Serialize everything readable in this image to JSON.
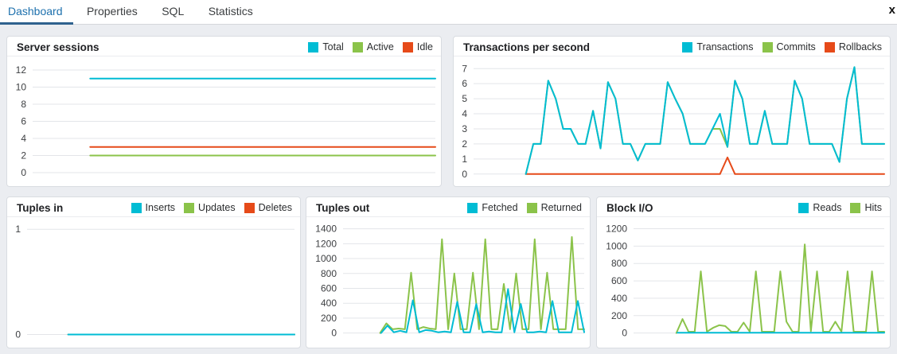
{
  "tab_bar": {
    "tabs": [
      {
        "label": "Dashboard",
        "active": true
      },
      {
        "label": "Properties",
        "active": false
      },
      {
        "label": "SQL",
        "active": false
      },
      {
        "label": "Statistics",
        "active": false
      }
    ],
    "close_glyph": "x"
  },
  "colors": {
    "series_cyan": "#00BCD4",
    "series_green": "#8BC34A",
    "series_orange": "#E64A19",
    "active_tab_text": "#1d70ad",
    "active_tab_underline": "#2f628e",
    "gridline": "#e3e5e9",
    "tick_text": "#3d3f42"
  },
  "panels": [
    {
      "title": "Server sessions",
      "legend": [
        {
          "label": "Total",
          "color": "#00BCD4"
        },
        {
          "label": "Active",
          "color": "#8BC34A"
        },
        {
          "label": "Idle",
          "color": "#E64A19"
        }
      ],
      "chart_data": {
        "type": "line",
        "ylim": [
          -1.4,
          13.4
        ],
        "yticks": [
          0,
          2,
          4,
          6,
          8,
          10,
          12
        ],
        "series": [
          {
            "name": "Idle",
            "color": "#E64A19",
            "values": [
              null,
              null,
              null,
              null,
              null,
              null,
              null,
              3,
              3,
              3,
              3,
              3,
              3,
              3,
              3,
              3,
              3,
              3,
              3,
              3,
              3,
              3,
              3,
              3,
              3,
              3,
              3,
              3,
              3,
              3,
              3,
              3,
              3,
              3,
              3,
              3,
              3,
              3,
              3,
              3,
              3,
              3,
              3,
              3,
              3,
              3,
              3,
              3,
              3,
              3
            ]
          },
          {
            "name": "Active",
            "color": "#8BC34A",
            "values": [
              null,
              null,
              null,
              null,
              null,
              null,
              null,
              2,
              2,
              2,
              2,
              2,
              2,
              2,
              2,
              2,
              2,
              2,
              2,
              2,
              2,
              2,
              2,
              2,
              2,
              2,
              2,
              2,
              2,
              2,
              2,
              2,
              2,
              2,
              2,
              2,
              2,
              2,
              2,
              2,
              2,
              2,
              2,
              2,
              2,
              2,
              2,
              2,
              2,
              2
            ]
          },
          {
            "name": "Total",
            "color": "#00BCD4",
            "values": [
              null,
              null,
              null,
              null,
              null,
              null,
              null,
              11,
              11,
              11,
              11,
              11,
              11,
              11,
              11,
              11,
              11,
              11,
              11,
              11,
              11,
              11,
              11,
              11,
              11,
              11,
              11,
              11,
              11,
              11,
              11,
              11,
              11,
              11,
              11,
              11,
              11,
              11,
              11,
              11,
              11,
              11,
              11,
              11,
              11,
              11,
              11,
              11,
              11,
              11
            ]
          }
        ]
      }
    },
    {
      "title": "Transactions per second",
      "legend": [
        {
          "label": "Transactions",
          "color": "#00BCD4"
        },
        {
          "label": "Commits",
          "color": "#8BC34A"
        },
        {
          "label": "Rollbacks",
          "color": "#E64A19"
        }
      ],
      "chart_data": {
        "type": "line",
        "ylim": [
          -0.7,
          7.7
        ],
        "yticks": [
          0,
          1,
          2,
          3,
          4,
          5,
          6,
          7
        ],
        "series": [
          {
            "name": "Commits",
            "color": "#8BC34A",
            "values": [
              null,
              null,
              null,
              null,
              null,
              null,
              null,
              0,
              2,
              2,
              6.2,
              5,
              3,
              3,
              2,
              2,
              4.2,
              1.7,
              6.1,
              5,
              2,
              2,
              0.9,
              2,
              2,
              2,
              6.1,
              5,
              4,
              2,
              2,
              2,
              3,
              3,
              1.8,
              6.2,
              5,
              2,
              2,
              4.2,
              2,
              2,
              2,
              6.2,
              5,
              2,
              2,
              2,
              2,
              0.8,
              5,
              7.1,
              2,
              2,
              2,
              2
            ]
          },
          {
            "name": "Rollbacks",
            "color": "#E64A19",
            "values": [
              null,
              null,
              null,
              null,
              null,
              null,
              null,
              0,
              0,
              0,
              0,
              0,
              0,
              0,
              0,
              0,
              0,
              0,
              0,
              0,
              0,
              0,
              0,
              0,
              0,
              0,
              0,
              0,
              0,
              0,
              0,
              0,
              0,
              0,
              1.1,
              0,
              0,
              0,
              0,
              0,
              0,
              0,
              0,
              0,
              0,
              0,
              0,
              0,
              0,
              0,
              0,
              0,
              0,
              0,
              0,
              0
            ]
          },
          {
            "name": "Transactions",
            "color": "#00BCD4",
            "values": [
              null,
              null,
              null,
              null,
              null,
              null,
              null,
              0,
              2,
              2,
              6.2,
              5,
              3,
              3,
              2,
              2,
              4.2,
              1.7,
              6.1,
              5,
              2,
              2,
              0.9,
              2,
              2,
              2,
              6.1,
              5,
              4,
              2,
              2,
              2,
              3,
              4,
              1.8,
              6.2,
              5,
              2,
              2,
              4.2,
              2,
              2,
              2,
              6.2,
              5,
              2,
              2,
              2,
              2,
              0.8,
              5,
              7.1,
              2,
              2,
              2,
              2
            ]
          }
        ]
      }
    },
    {
      "title": "Tuples in",
      "legend": [
        {
          "label": "Inserts",
          "color": "#00BCD4"
        },
        {
          "label": "Updates",
          "color": "#8BC34A"
        },
        {
          "label": "Deletes",
          "color": "#E64A19"
        }
      ],
      "chart_data": {
        "type": "line",
        "ylim": [
          -0.11,
          1.1
        ],
        "yticks": [
          0,
          1
        ],
        "series": [
          {
            "name": "Deletes",
            "color": "#E64A19",
            "values": [
              null,
              null,
              null,
              null,
              null,
              null,
              0,
              0,
              0,
              0,
              0,
              0,
              0,
              0,
              0,
              0,
              0,
              0,
              0,
              0,
              0,
              0,
              0,
              0,
              0,
              0,
              0,
              0,
              0,
              0,
              0,
              0,
              0,
              0,
              0,
              0,
              0,
              0,
              0,
              0
            ]
          },
          {
            "name": "Updates",
            "color": "#8BC34A",
            "values": [
              null,
              null,
              null,
              null,
              null,
              null,
              0,
              0,
              0,
              0,
              0,
              0,
              0,
              0,
              0,
              0,
              0,
              0,
              0,
              0,
              0,
              0,
              0,
              0,
              0,
              0,
              0,
              0,
              0,
              0,
              0,
              0,
              0,
              0,
              0,
              0,
              0,
              0,
              0,
              0
            ]
          },
          {
            "name": "Inserts",
            "color": "#00BCD4",
            "values": [
              null,
              null,
              null,
              null,
              null,
              null,
              0,
              0,
              0,
              0,
              0,
              0,
              0,
              0,
              0,
              0,
              0,
              0,
              0,
              0,
              0,
              0,
              0,
              0,
              0,
              0,
              0,
              0,
              0,
              0,
              0,
              0,
              0,
              0,
              0,
              0,
              0,
              0,
              0,
              0
            ]
          }
        ]
      }
    },
    {
      "title": "Tuples out",
      "legend": [
        {
          "label": "Fetched",
          "color": "#00BCD4"
        },
        {
          "label": "Returned",
          "color": "#8BC34A"
        }
      ],
      "chart_data": {
        "type": "line",
        "ylim": [
          -175,
          1535
        ],
        "yticks": [
          0,
          200,
          400,
          600,
          800,
          1000,
          1200,
          1400
        ],
        "series": [
          {
            "name": "Returned",
            "color": "#8BC34A",
            "values": [
              null,
              null,
              null,
              null,
              null,
              null,
              0,
              130,
              50,
              60,
              50,
              810,
              50,
              80,
              60,
              50,
              1260,
              50,
              800,
              50,
              50,
              810,
              50,
              1260,
              50,
              50,
              660,
              50,
              800,
              50,
              50,
              1260,
              50,
              810,
              50,
              50,
              50,
              1290,
              50,
              50
            ]
          },
          {
            "name": "Fetched",
            "color": "#00BCD4",
            "values": [
              null,
              null,
              null,
              null,
              null,
              null,
              0,
              100,
              10,
              30,
              10,
              440,
              10,
              40,
              30,
              10,
              20,
              10,
              420,
              10,
              10,
              390,
              10,
              20,
              10,
              10,
              590,
              10,
              390,
              10,
              10,
              20,
              10,
              430,
              10,
              10,
              10,
              430,
              10
            ]
          }
        ]
      }
    },
    {
      "title": "Block I/O",
      "legend": [
        {
          "label": "Reads",
          "color": "#00BCD4"
        },
        {
          "label": "Hits",
          "color": "#8BC34A"
        }
      ],
      "chart_data": {
        "type": "line",
        "ylim": [
          -150,
          1315
        ],
        "yticks": [
          0,
          200,
          400,
          600,
          800,
          1000,
          1200
        ],
        "series": [
          {
            "name": "Hits",
            "color": "#8BC34A",
            "values": [
              null,
              null,
              null,
              null,
              null,
              null,
              null,
              0,
              160,
              15,
              15,
              710,
              15,
              60,
              90,
              80,
              15,
              15,
              120,
              15,
              710,
              15,
              15,
              15,
              710,
              130,
              15,
              15,
              1020,
              20,
              710,
              15,
              15,
              130,
              15,
              710,
              15,
              15,
              15,
              710,
              15,
              15
            ]
          },
          {
            "name": "Reads",
            "color": "#00BCD4",
            "values": [
              null,
              null,
              null,
              null,
              null,
              null,
              null,
              3,
              3,
              3,
              3,
              3,
              3,
              3,
              3,
              3,
              3,
              3,
              3,
              3,
              3,
              3,
              3,
              3,
              3,
              3,
              3,
              3,
              3,
              3,
              3,
              3,
              3,
              3,
              3,
              3,
              3,
              3,
              3,
              3,
              3
            ]
          }
        ]
      }
    }
  ]
}
